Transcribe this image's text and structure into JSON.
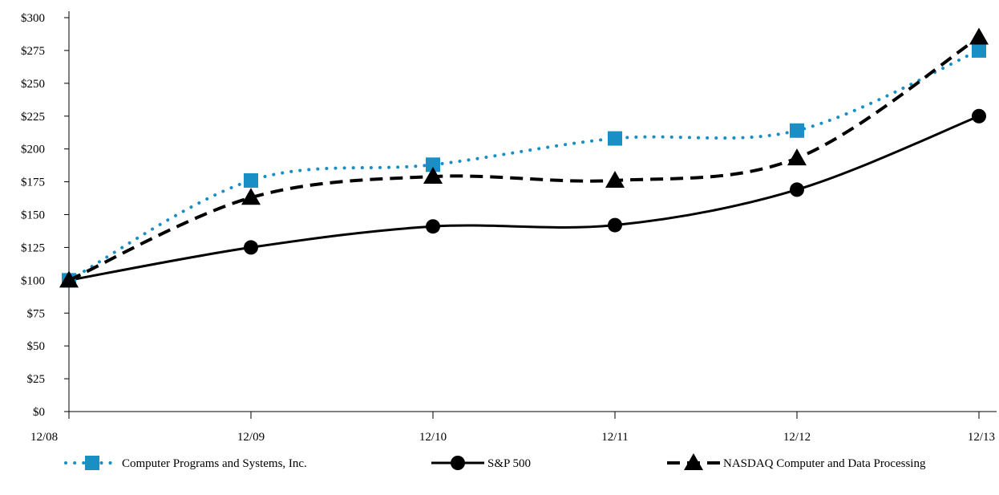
{
  "chart_data": {
    "type": "line",
    "title": "",
    "xlabel": "",
    "ylabel": "",
    "categories": [
      "12/08",
      "12/09",
      "12/10",
      "12/11",
      "12/12",
      "12/13"
    ],
    "y_ticks": [
      "$0",
      "$25",
      "$50",
      "$75",
      "$100",
      "$125",
      "$150",
      "$175",
      "$200",
      "$225",
      "$250",
      "$275",
      "$300"
    ],
    "ylim": [
      0,
      300
    ],
    "grid": false,
    "legend_position": "bottom",
    "series": [
      {
        "name": "Computer Programs and Systems, Inc.",
        "values": [
          100,
          176,
          188,
          208,
          214,
          275
        ],
        "color": "#1a8fc6",
        "line_style": "dotted",
        "marker": "square"
      },
      {
        "name": "S&P 500",
        "values": [
          100,
          125,
          141,
          142,
          169,
          225
        ],
        "color": "#000000",
        "line_style": "solid",
        "marker": "circle"
      },
      {
        "name": "NASDAQ Computer and Data Processing",
        "values": [
          100,
          163,
          179,
          176,
          193,
          285
        ],
        "color": "#000000",
        "line_style": "dashed",
        "marker": "triangle"
      }
    ]
  }
}
